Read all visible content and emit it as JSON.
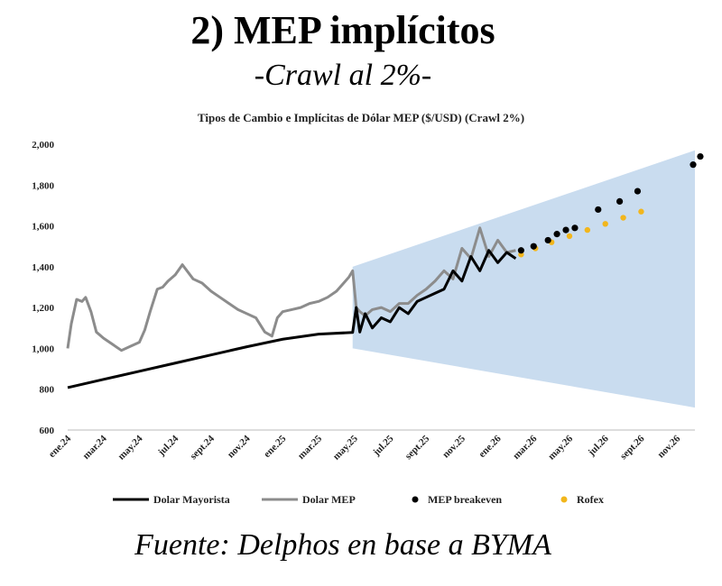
{
  "slide": {
    "title": "2)   MEP implícitos",
    "subtitle": "-Crawl al 2%-",
    "source": "Fuente:  Delphos en base a BYMA"
  },
  "chart_data": {
    "type": "line",
    "title": "Tipos de Cambio e Implícitas de Dólar MEP ($/USD) (Crawl 2%)",
    "xlabel": "",
    "ylabel": "",
    "ylim": [
      600,
      2000
    ],
    "yticks": [
      "600",
      "800",
      "1,000",
      "1,200",
      "1,400",
      "1,600",
      "1,800",
      "2,000"
    ],
    "xticks": [
      "ene.24",
      "mar.24",
      "may.24",
      "jul.24",
      "sept.24",
      "nov.24",
      "ene.25",
      "mar.25",
      "may.25",
      "jul.25",
      "sept.25",
      "nov.25",
      "ene.26",
      "mar.26",
      "may.26",
      "jul.26",
      "sept.26",
      "nov.26"
    ],
    "xrange_months": [
      0,
      35
    ],
    "legend": [
      "Dolar Mayorista",
      "Dolar MEP",
      "MEP breakeven",
      "Rofex"
    ],
    "colors": {
      "mayorista": "#000000",
      "mep": "#8c8c8c",
      "breakeven": "#000000",
      "rofex": "#f2b61c",
      "band": "#c9dcef"
    },
    "band": {
      "x": [
        15.9,
        35
      ],
      "upper": [
        1400,
        1970
      ],
      "lower": [
        1000,
        710
      ]
    },
    "series": [
      {
        "name": "Dolar Mayorista",
        "x": [
          0,
          2,
          4,
          6,
          8,
          10,
          12,
          14,
          15.9,
          16.1,
          16.3,
          16.6,
          17,
          17.5,
          18,
          18.5,
          19,
          19.5,
          20,
          20.5,
          21,
          21.5,
          22,
          22.5,
          23,
          23.5,
          24,
          24.5,
          25
        ],
        "values": [
          808,
          848,
          888,
          928,
          968,
          1008,
          1045,
          1070,
          1078,
          1200,
          1080,
          1170,
          1100,
          1150,
          1130,
          1200,
          1170,
          1230,
          1250,
          1270,
          1290,
          1380,
          1330,
          1450,
          1380,
          1480,
          1420,
          1470,
          1440
        ]
      },
      {
        "name": "Dolar MEP",
        "x": [
          0,
          0.2,
          0.5,
          0.8,
          1.0,
          1.3,
          1.6,
          2.0,
          2.5,
          3.0,
          3.5,
          4.0,
          4.3,
          4.6,
          5.0,
          5.3,
          5.6,
          6.0,
          6.4,
          7.0,
          7.5,
          8.0,
          8.5,
          9.0,
          9.5,
          10.0,
          10.5,
          11.0,
          11.4,
          11.7,
          12.0,
          12.5,
          13.0,
          13.5,
          14.0,
          14.5,
          15.0,
          15.4,
          15.7,
          15.9,
          16.1,
          16.3,
          16.6,
          17,
          17.5,
          18,
          18.5,
          19,
          19.5,
          20,
          20.5,
          21,
          21.5,
          22,
          22.5,
          23,
          23.5,
          24,
          24.5,
          25
        ],
        "values": [
          1000,
          1120,
          1240,
          1230,
          1250,
          1180,
          1080,
          1050,
          1020,
          990,
          1010,
          1030,
          1090,
          1180,
          1290,
          1300,
          1330,
          1360,
          1410,
          1340,
          1320,
          1280,
          1250,
          1220,
          1190,
          1170,
          1150,
          1080,
          1060,
          1150,
          1180,
          1190,
          1200,
          1220,
          1230,
          1250,
          1280,
          1320,
          1350,
          1380,
          1200,
          1180,
          1160,
          1190,
          1200,
          1180,
          1220,
          1220,
          1260,
          1290,
          1330,
          1380,
          1340,
          1490,
          1440,
          1590,
          1450,
          1530,
          1470,
          1480
        ]
      }
    ],
    "breakeven": {
      "x": [
        25.3,
        26,
        26.8,
        27.3,
        27.8,
        28.3,
        29.6,
        30.8,
        31.8,
        34.9,
        35.3
      ],
      "values": [
        1480,
        1500,
        1530,
        1560,
        1580,
        1590,
        1680,
        1720,
        1770,
        1900,
        1940
      ]
    },
    "rofex": {
      "x": [
        25.3,
        26.1,
        27,
        28,
        29,
        30,
        31,
        32
      ],
      "values": [
        1460,
        1490,
        1520,
        1550,
        1580,
        1610,
        1640,
        1670
      ]
    }
  }
}
